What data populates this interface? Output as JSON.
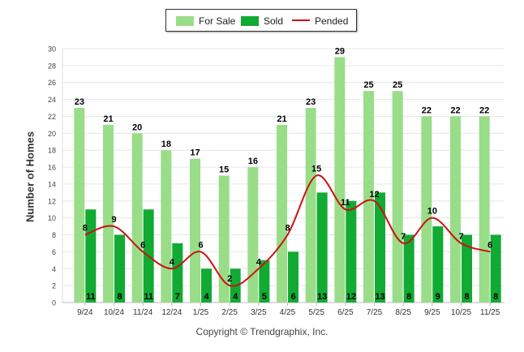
{
  "legend": {
    "items": [
      {
        "label": "For Sale",
        "color": "#99dd88"
      },
      {
        "label": "Sold",
        "color": "#11aa33"
      },
      {
        "label": "Pended",
        "color": "#cc1111"
      }
    ]
  },
  "ylabel": "Number of Homes",
  "copyright": "Copyright © Trendgraphix, Inc.",
  "chart_data": {
    "type": "bar",
    "categories": [
      "9/24",
      "10/24",
      "11/24",
      "12/24",
      "1/25",
      "2/25",
      "3/25",
      "4/25",
      "5/25",
      "6/25",
      "7/25",
      "8/25",
      "9/25",
      "10/25",
      "11/25"
    ],
    "series": [
      {
        "name": "For Sale",
        "type": "bar",
        "color": "#99dd88",
        "values": [
          23,
          21,
          20,
          18,
          17,
          15,
          16,
          21,
          23,
          29,
          25,
          25,
          22,
          22,
          22
        ]
      },
      {
        "name": "Sold",
        "type": "bar",
        "color": "#11aa33",
        "values": [
          11,
          8,
          11,
          7,
          4,
          4,
          5,
          6,
          13,
          12,
          13,
          8,
          9,
          8,
          8
        ]
      },
      {
        "name": "Pended",
        "type": "line",
        "color": "#cc1111",
        "values": [
          8,
          9,
          6,
          4,
          6,
          2,
          4,
          8,
          15,
          11,
          12,
          7,
          10,
          7,
          6
        ]
      }
    ],
    "ylim": [
      0,
      30
    ],
    "yticks": [
      0,
      2,
      4,
      6,
      8,
      10,
      12,
      14,
      16,
      18,
      20,
      22,
      24,
      26,
      28,
      30
    ],
    "ylabel": "Number of Homes",
    "xlabel": "",
    "grid": true,
    "legend_position": "top-center"
  }
}
